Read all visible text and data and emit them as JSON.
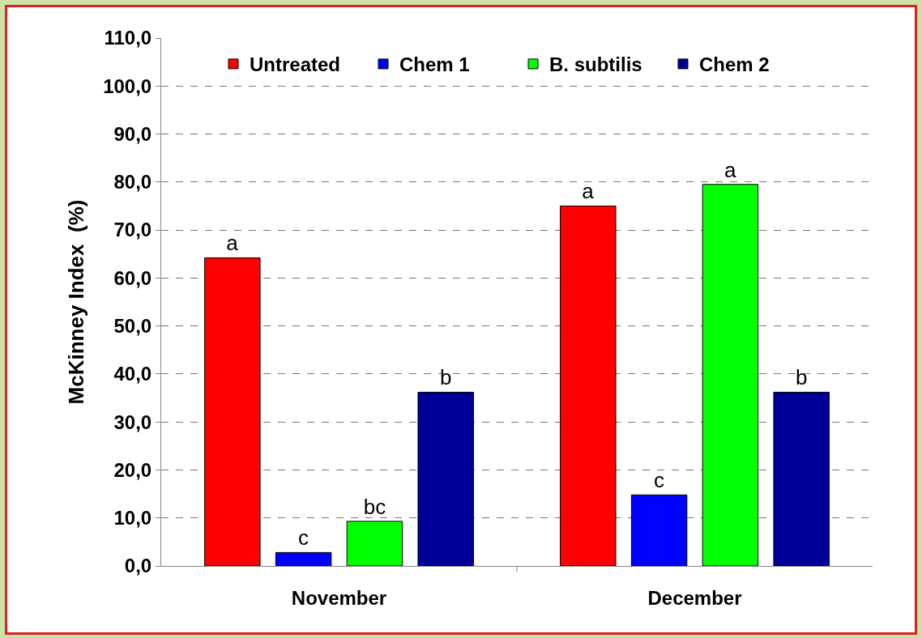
{
  "chart_data": {
    "type": "bar",
    "ylabel": "McKinney Index  (%)",
    "categories": [
      "November",
      "December"
    ],
    "series": [
      {
        "name": "Untreated",
        "color": "#ff0000",
        "values": [
          64.2,
          75.0
        ],
        "value_labels": [
          "a",
          "a"
        ]
      },
      {
        "name": "Chem 1",
        "color": "#0000ff",
        "values": [
          2.8,
          14.8
        ],
        "value_labels": [
          "c",
          "c"
        ]
      },
      {
        "name": "B. subtilis",
        "color": "#00ff00",
        "values": [
          9.3,
          79.5
        ],
        "value_labels": [
          "bc",
          "a"
        ]
      },
      {
        "name": "Chem 2",
        "color": "#000099",
        "values": [
          36.2,
          36.2
        ],
        "value_labels": [
          "b",
          "b"
        ]
      }
    ],
    "ylim": [
      0,
      110
    ],
    "yticks": [
      {
        "value": 0,
        "label": "0,0"
      },
      {
        "value": 10,
        "label": "10,0"
      },
      {
        "value": 20,
        "label": "20,0"
      },
      {
        "value": 30,
        "label": "30,0"
      },
      {
        "value": 40,
        "label": "40,0"
      },
      {
        "value": 50,
        "label": "50,0"
      },
      {
        "value": 60,
        "label": "60,0"
      },
      {
        "value": 70,
        "label": "70,0"
      },
      {
        "value": 80,
        "label": "80,0"
      },
      {
        "value": 90,
        "label": "90,0"
      },
      {
        "value": 100,
        "label": "100,0"
      },
      {
        "value": 110,
        "label": "110,0"
      }
    ],
    "grid": "y",
    "legend": "top"
  }
}
